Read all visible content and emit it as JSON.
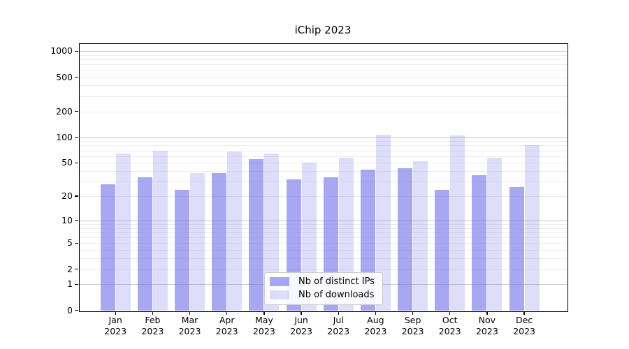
{
  "title": "iChip 2023",
  "chart_data": {
    "type": "bar",
    "title": "iChip 2023",
    "xlabel": "",
    "ylabel": "",
    "categories": [
      "Jan",
      "Feb",
      "Mar",
      "Apr",
      "May",
      "Jun",
      "Jul",
      "Aug",
      "Sep",
      "Oct",
      "Nov",
      "Dec"
    ],
    "category_year": "2023",
    "series": [
      {
        "name": "Nb of distinct IPs",
        "base_color": "#7a7aeb",
        "alpha": 0.65,
        "values": [
          28,
          34,
          24,
          38,
          55,
          32,
          34,
          42,
          43,
          24,
          36,
          26
        ]
      },
      {
        "name": "Nb of downloads",
        "base_color": "#7a7aeb",
        "alpha": 0.25,
        "values": [
          64,
          70,
          38,
          68,
          64,
          50,
          57,
          107,
          52,
          105,
          58,
          80
        ]
      }
    ],
    "yscale": "log1p",
    "ylim": [
      0,
      1230
    ],
    "yticks": [
      0,
      1,
      2,
      5,
      10,
      20,
      50,
      100,
      200,
      500,
      1000
    ],
    "grid": {
      "major_lines": [
        1,
        10,
        100,
        1000
      ],
      "minor_lines": [
        2,
        3,
        4,
        5,
        6,
        7,
        8,
        9,
        20,
        30,
        40,
        50,
        60,
        70,
        80,
        90,
        200,
        300,
        400,
        500,
        600,
        700,
        800,
        900
      ],
      "major_color": "#c9c9c9",
      "minor_color": "#ededed"
    },
    "legend_position": "lower center"
  }
}
